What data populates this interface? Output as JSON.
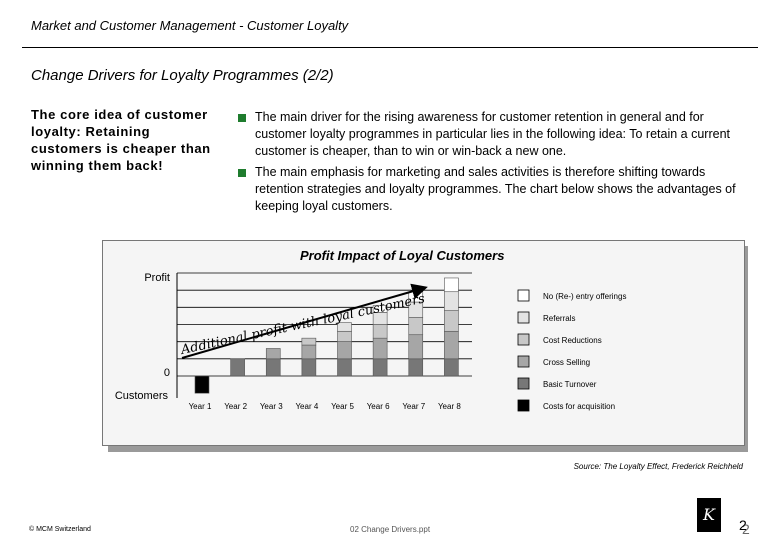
{
  "header": {
    "title": "Market and Customer Management - Customer Loyalty"
  },
  "slide": {
    "title": "Change Drivers for Loyalty Programmes (2/2)"
  },
  "core_idea": "The core idea of customer loyalty: Retaining customers is cheaper than winning them back!",
  "bullets": [
    "The main driver for the rising awareness for customer retention in general and for customer loyalty programmes in particular lies in the following idea: To retain a current customer is cheaper, than to win or win-back a new one.",
    "The main emphasis for marketing and sales activities is therefore shifting towards retention strategies and loyalty programmes. The chart below shows the advantages of keeping loyal customers."
  ],
  "colors": {
    "bullet": "#1f7c2e"
  },
  "chart_data": {
    "type": "bar",
    "stacked": true,
    "title": "Profit Impact of Loyal Customers",
    "ylabel_top": "Profit",
    "ylabel_bottom": "Customers",
    "zero_label": "0",
    "categories": [
      "Year 1",
      "Year 2",
      "Year 3",
      "Year 4",
      "Year 5",
      "Year 6",
      "Year 7",
      "Year 8"
    ],
    "series": [
      {
        "name": "Costs for acquisition",
        "color": "#000000",
        "values": [
          -1,
          0,
          0,
          0,
          0,
          0,
          0,
          0
        ]
      },
      {
        "name": "Basic Turnover",
        "color": "#777777",
        "values": [
          0,
          1,
          1,
          1,
          1,
          1,
          1,
          1
        ]
      },
      {
        "name": "Cross Selling",
        "color": "#a6a6a6",
        "values": [
          0,
          0,
          0.6,
          0.8,
          1.0,
          1.2,
          1.4,
          1.6
        ]
      },
      {
        "name": "Cost Reductions",
        "color": "#c8c8c8",
        "values": [
          0,
          0,
          0,
          0.4,
          0.6,
          0.8,
          1.0,
          1.2
        ]
      },
      {
        "name": "Referrals",
        "color": "#e3e3e3",
        "values": [
          0,
          0,
          0,
          0,
          0.5,
          0.7,
          0.9,
          1.1
        ]
      },
      {
        "name": "No (Re-) entry offerings",
        "color": "#ffffff",
        "values": [
          0,
          0,
          0,
          0,
          0,
          0.4,
          0.6,
          0.8
        ]
      }
    ],
    "legend_order": [
      "No (Re-) entry offerings",
      "Referrals",
      "Cost Reductions",
      "Cross Selling",
      "Basic Turnover",
      "Costs for acquisition"
    ],
    "annotation": "Additional profit with loyal customers",
    "grid": true,
    "legend_position": "right"
  },
  "source": "Source: The Loyalty Effect, Frederick Reichheld",
  "footer": {
    "left": "© MCM Switzerland",
    "center": "02 Change Drivers.ppt",
    "page": "2",
    "logo": "K"
  }
}
